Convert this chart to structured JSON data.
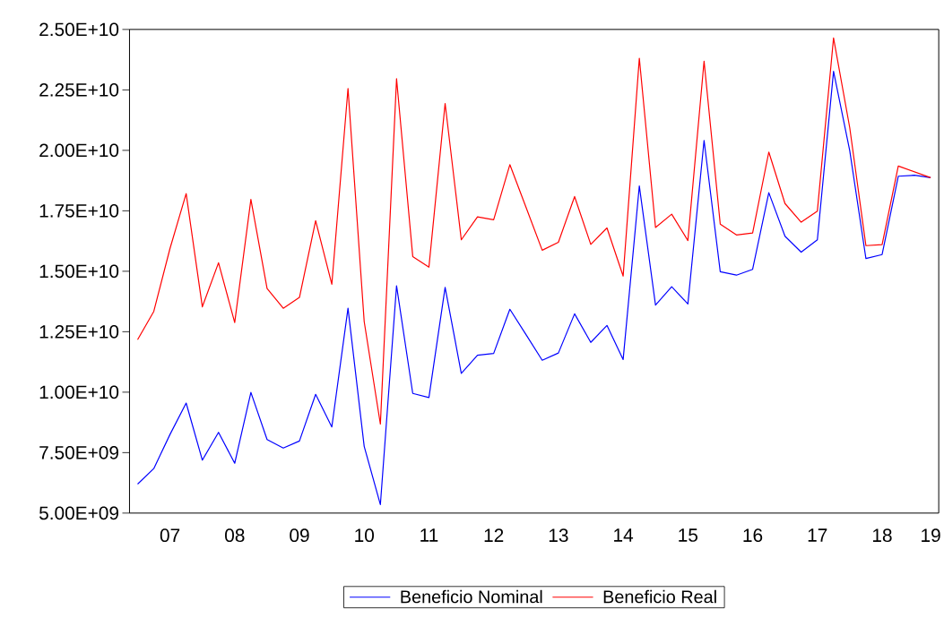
{
  "chart_data": {
    "type": "line",
    "categories": [
      null,
      null,
      "07",
      null,
      null,
      null,
      "08",
      null,
      null,
      null,
      "09",
      null,
      null,
      null,
      "10",
      null,
      null,
      null,
      "11",
      null,
      null,
      null,
      "12",
      null,
      null,
      null,
      "13",
      null,
      null,
      null,
      "14",
      null,
      null,
      null,
      "15",
      null,
      null,
      null,
      "16",
      null,
      null,
      null,
      "17",
      null,
      null,
      null,
      "18",
      null,
      null,
      "19"
    ],
    "series": [
      {
        "name": "Beneficio Nominal",
        "color": "#0000ff",
        "values": [
          6200000000.0,
          6840000000.0,
          8250000000.0,
          9550000000.0,
          7190000000.0,
          8340000000.0,
          7060000000.0,
          9990000000.0,
          8040000000.0,
          7690000000.0,
          7980000000.0,
          9910000000.0,
          8560000000.0,
          13470000000.0,
          7760000000.0,
          5350000000.0,
          14400000000.0,
          9950000000.0,
          9780000000.0,
          14330000000.0,
          10780000000.0,
          11530000000.0,
          11600000000.0,
          13430000000.0,
          12380000000.0,
          11320000000.0,
          11620000000.0,
          13240000000.0,
          12060000000.0,
          12760000000.0,
          11350000000.0,
          18530000000.0,
          13600000000.0,
          14360000000.0,
          13650000000.0,
          20410000000.0,
          14980000000.0,
          14840000000.0,
          15080000000.0,
          18250000000.0,
          16450000000.0,
          15790000000.0,
          16300000000.0,
          23270000000.0,
          19990000000.0,
          15530000000.0,
          15690000000.0,
          18930000000.0,
          18970000000.0,
          18870000000.0
        ]
      },
      {
        "name": "Beneficio Real",
        "color": "#ff0000",
        "values": [
          12170000000.0,
          13340000000.0,
          15940000000.0,
          18210000000.0,
          13530000000.0,
          15350000000.0,
          12880000000.0,
          17970000000.0,
          14290000000.0,
          13470000000.0,
          13920000000.0,
          17090000000.0,
          14460000000.0,
          22560000000.0,
          12920000000.0,
          8680000000.0,
          22960000000.0,
          15610000000.0,
          15170000000.0,
          21940000000.0,
          16300000000.0,
          17250000000.0,
          17130000000.0,
          19410000000.0,
          17640000000.0,
          15870000000.0,
          16200000000.0,
          18090000000.0,
          16110000000.0,
          16790000000.0,
          14800000000.0,
          23810000000.0,
          16810000000.0,
          17360000000.0,
          16270000000.0,
          23690000000.0,
          16950000000.0,
          16500000000.0,
          16580000000.0,
          19930000000.0,
          17800000000.0,
          17030000000.0,
          17490000000.0,
          24650000000.0,
          20940000000.0,
          16060000000.0,
          16100000000.0,
          19350000000.0,
          19110000000.0,
          18870000000.0
        ]
      }
    ],
    "ylim": [
      5000000000.0,
      25000000000.0
    ],
    "yticks": [
      {
        "value": 5000000000.0,
        "label": "5.00E+09"
      },
      {
        "value": 7500000000.0,
        "label": "7.50E+09"
      },
      {
        "value": 10000000000.0,
        "label": "1.00E+10"
      },
      {
        "value": 12500000000.0,
        "label": "1.25E+10"
      },
      {
        "value": 15000000000.0,
        "label": "1.50E+10"
      },
      {
        "value": 17500000000.0,
        "label": "1.75E+10"
      },
      {
        "value": 20000000000.0,
        "label": "2.00E+10"
      },
      {
        "value": 22500000000.0,
        "label": "2.25E+10"
      },
      {
        "value": 25000000000.0,
        "label": "2.50E+10"
      }
    ],
    "legend": "bottom",
    "grid": false,
    "marker": "none",
    "line_style": "solid"
  }
}
